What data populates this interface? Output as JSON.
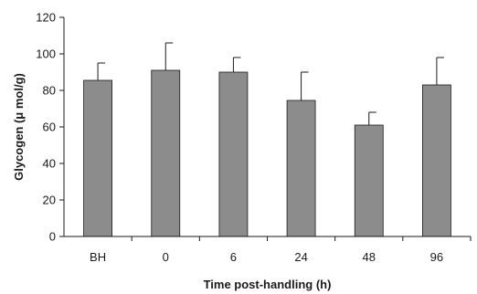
{
  "chart_data": {
    "type": "bar",
    "xlabel": "Time post-handling (h)",
    "ylabel": "Glycogen (μ mol/g)",
    "categories": [
      "BH",
      "0",
      "6",
      "24",
      "48",
      "96"
    ],
    "values": [
      85.5,
      91,
      90,
      74.5,
      61,
      83
    ],
    "error_upper": [
      95,
      106,
      98,
      90,
      68,
      98
    ],
    "ylim": [
      0,
      120
    ],
    "yticks": [
      0,
      20,
      40,
      60,
      80,
      100,
      120
    ],
    "grid": false,
    "bar_color": "#8c8c8c",
    "axis_color": "#1a1a1a"
  }
}
